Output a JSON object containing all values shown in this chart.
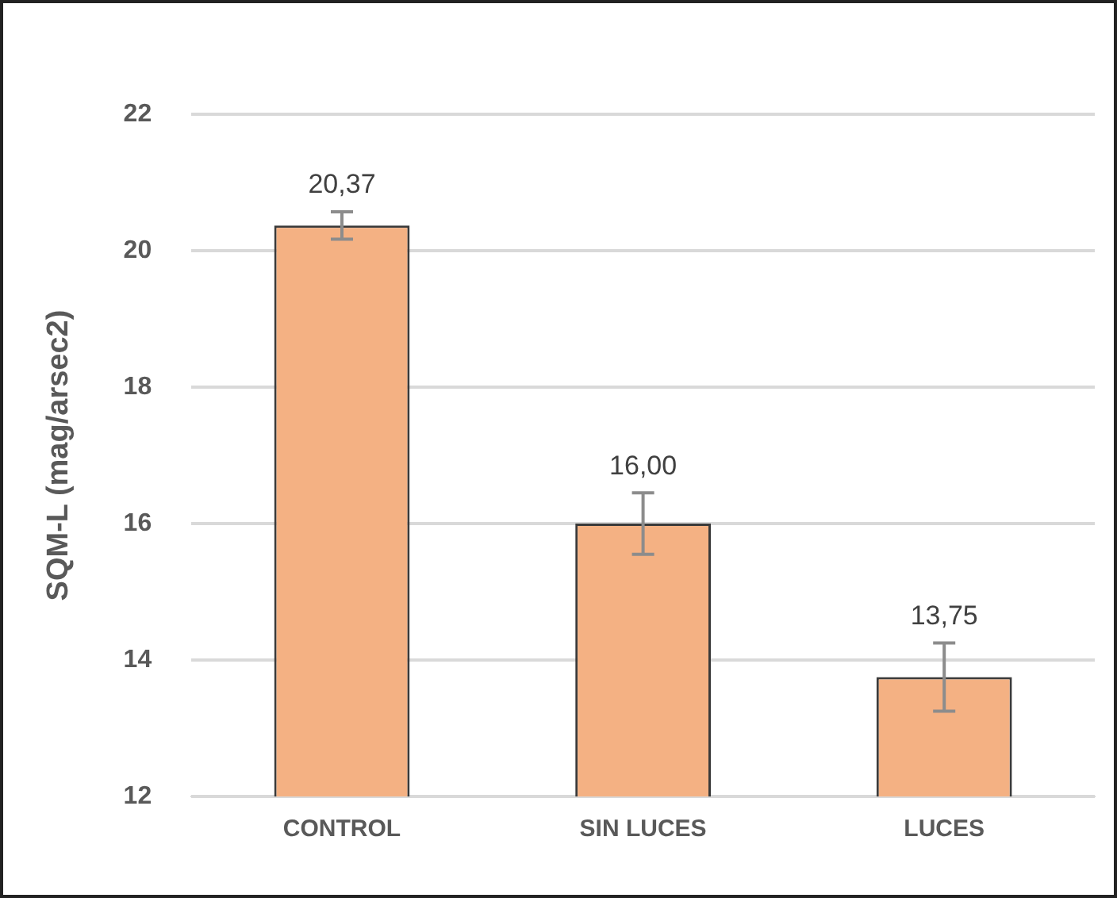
{
  "chart_data": {
    "type": "bar",
    "ylabel": "SQM-L (mag/arsec2)",
    "categories": [
      "CONTROL",
      "SIN LUCES",
      "LUCES"
    ],
    "values": [
      20.37,
      16.0,
      13.75
    ],
    "errors": [
      0.2,
      0.45,
      0.5
    ],
    "value_labels": [
      "20,37",
      "16,00",
      "13,75"
    ],
    "color": "#f4b183",
    "ylim": [
      12,
      22
    ],
    "yticks": [
      12,
      14,
      16,
      18,
      20,
      22
    ],
    "grid": "y",
    "legend": false
  }
}
